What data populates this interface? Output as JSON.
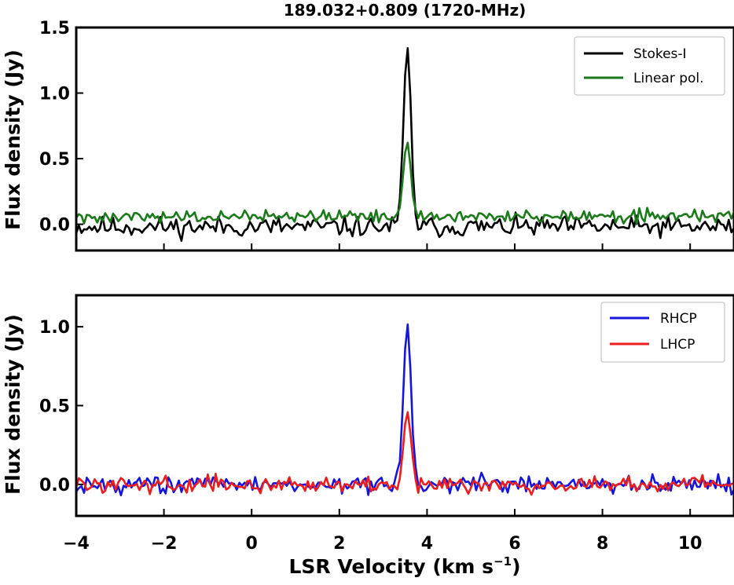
{
  "figure": {
    "title": "189.032+0.809 (1720-MHz)",
    "xlabel": "LSR Velocity (km s",
    "xlabel_sup": "−1",
    "xlabel_end": ")"
  },
  "chart_data": [
    {
      "type": "line",
      "ylabel": "Flux density (Jy)",
      "xlim": [
        -4,
        11
      ],
      "ylim": [
        -0.2,
        1.5
      ],
      "yticks": [
        0.0,
        0.5,
        1.0,
        1.5
      ],
      "ytick_labels": [
        "0.0",
        "0.5",
        "1.0",
        "1.5"
      ],
      "legend_position": "top-right",
      "series": [
        {
          "name": "Stokes-I",
          "color": "#000000"
        },
        {
          "name": "Linear pol.",
          "color": "#1a7a1a"
        }
      ]
    },
    {
      "type": "line",
      "ylabel": "Flux density (Jy)",
      "xlim": [
        -4,
        11
      ],
      "ylim": [
        -0.2,
        1.2
      ],
      "yticks": [
        0.0,
        0.5,
        1.0
      ],
      "ytick_labels": [
        "0.0",
        "0.5",
        "1.0"
      ],
      "xticks": [
        -4,
        -2,
        0,
        2,
        4,
        6,
        8,
        10
      ],
      "xtick_labels": [
        "−4",
        "−2",
        "0",
        "2",
        "4",
        "6",
        "8",
        "10"
      ],
      "legend_position": "top-right",
      "series": [
        {
          "name": "RHCP",
          "color": "#1515e0"
        },
        {
          "name": "LHCP",
          "color": "#ee1c1c"
        }
      ]
    }
  ]
}
